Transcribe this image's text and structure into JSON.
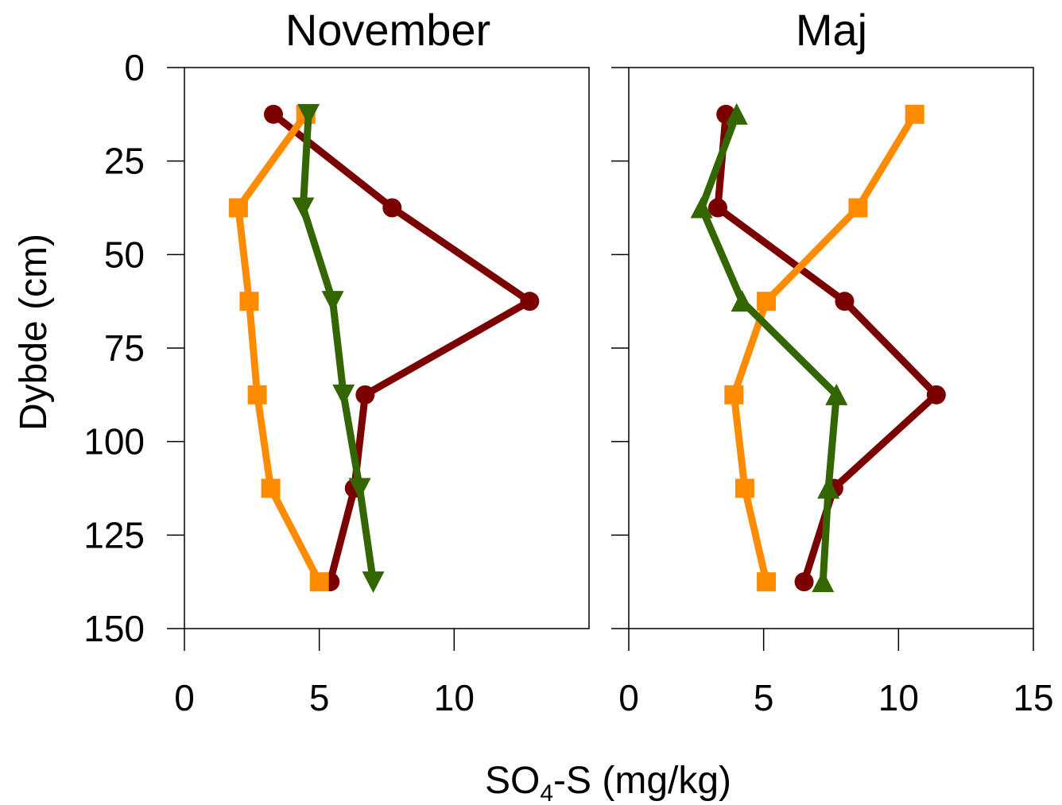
{
  "chart_data": {
    "type": "line",
    "ylabel": "Dybde (cm)",
    "xlabel": {
      "main": "SO",
      "subscript": "4",
      "suffix": "-S (mg/kg)"
    },
    "y_axis": {
      "ticks": [
        "0",
        "25",
        "50",
        "75",
        "100",
        "125",
        "150"
      ],
      "ylim": [
        0,
        150
      ],
      "inverted": true
    },
    "grid": false,
    "legend": "none",
    "series_colors": [
      "#7b0000",
      "#ff8c00",
      "#336600"
    ],
    "series_markers": [
      "circle",
      "square",
      "triangle"
    ],
    "panels": [
      {
        "title": "November",
        "x_ticks": [
          "0",
          "5",
          "10"
        ],
        "xlim": [
          0,
          15
        ],
        "series": [
          {
            "marker": "circle",
            "color": "#7b0000",
            "points": [
              [
                3.3,
                12.5
              ],
              [
                7.7,
                37.5
              ],
              [
                12.8,
                62.5
              ],
              [
                6.7,
                87.5
              ],
              [
                6.3,
                112.5
              ],
              [
                5.4,
                137.5
              ]
            ]
          },
          {
            "marker": "square",
            "color": "#ff8c00",
            "points": [
              [
                4.5,
                12.5
              ],
              [
                2.0,
                37.5
              ],
              [
                2.4,
                62.5
              ],
              [
                2.7,
                87.5
              ],
              [
                3.2,
                112.5
              ],
              [
                5.0,
                137.5
              ]
            ]
          },
          {
            "marker": "triangle-down",
            "color": "#336600",
            "points": [
              [
                4.6,
                12.5
              ],
              [
                4.4,
                37.5
              ],
              [
                5.5,
                62.5
              ],
              [
                5.9,
                87.5
              ],
              [
                6.5,
                112.5
              ],
              [
                7.0,
                137.5
              ]
            ]
          }
        ]
      },
      {
        "title": "Maj",
        "x_ticks": [
          "0",
          "5",
          "10",
          "15"
        ],
        "xlim": [
          0,
          15
        ],
        "series": [
          {
            "marker": "circle",
            "color": "#7b0000",
            "points": [
              [
                3.6,
                12.5
              ],
              [
                3.3,
                37.5
              ],
              [
                8.0,
                62.5
              ],
              [
                11.4,
                87.5
              ],
              [
                7.6,
                112.5
              ],
              [
                6.5,
                137.5
              ]
            ]
          },
          {
            "marker": "square",
            "color": "#ff8c00",
            "points": [
              [
                10.6,
                12.5
              ],
              [
                8.5,
                37.5
              ],
              [
                5.1,
                62.5
              ],
              [
                3.9,
                87.5
              ],
              [
                4.3,
                112.5
              ],
              [
                5.1,
                137.5
              ]
            ]
          },
          {
            "marker": "triangle-up",
            "color": "#336600",
            "points": [
              [
                4.0,
                12.5
              ],
              [
                2.7,
                37.5
              ],
              [
                4.2,
                62.5
              ],
              [
                7.7,
                87.5
              ],
              [
                7.4,
                112.5
              ],
              [
                7.2,
                137.5
              ]
            ]
          }
        ]
      }
    ]
  }
}
